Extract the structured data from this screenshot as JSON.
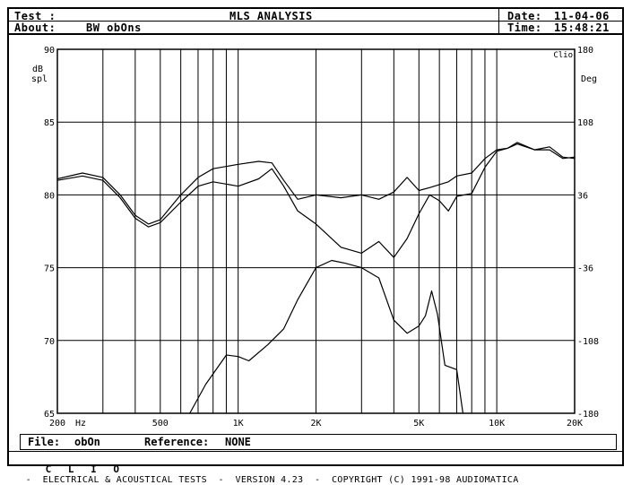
{
  "header": {
    "test_label": "Test :",
    "about_label": "About:",
    "about_value": "BW obOns",
    "title": "MLS ANALYSIS",
    "date_label": "Date:",
    "date_value": "11-04-06",
    "time_label": "Time:",
    "time_value": "15:48:21"
  },
  "footer": {
    "file_label": "File:",
    "file_value": "obOn",
    "reference_label": "Reference:",
    "reference_value": "NONE"
  },
  "copyright": {
    "brand": "C L I O",
    "text": "-  ELECTRICAL & ACOUSTICAL TESTS  -  VERSION 4.23  -  COPYRIGHT (C) 1991-98 AUDIOMATICA"
  },
  "chart_data": {
    "type": "line",
    "xscale": "log",
    "xlim": [
      200,
      20000
    ],
    "ylim": [
      65,
      90
    ],
    "y2lim": [
      -180,
      180
    ],
    "xlabel": "Hz",
    "ylabel": "dB spl",
    "y2label": "Deg",
    "corner_label": "Clio",
    "x_tick_labels": [
      {
        "value": 200,
        "label": "200"
      },
      {
        "value": 500,
        "label": "500"
      },
      {
        "value": 1000,
        "label": "1K"
      },
      {
        "value": 2000,
        "label": "2K"
      },
      {
        "value": 5000,
        "label": "5K"
      },
      {
        "value": 10000,
        "label": "10K"
      },
      {
        "value": 20000,
        "label": "20K"
      }
    ],
    "y_ticks": [
      "90",
      "85",
      "80",
      "75",
      "70",
      "65"
    ],
    "y2_ticks": [
      "180",
      "108",
      "36",
      "-36",
      "-108",
      "-180"
    ],
    "grid": true,
    "series": [
      {
        "values": [
          [
            200,
            81.1
          ],
          [
            250,
            81.5
          ],
          [
            300,
            81.2
          ],
          [
            350,
            80
          ],
          [
            400,
            78.6
          ],
          [
            450,
            78
          ],
          [
            500,
            78.3
          ],
          [
            600,
            80
          ],
          [
            700,
            81.2
          ],
          [
            800,
            81.8
          ],
          [
            1000,
            82.1
          ],
          [
            1200,
            82.3
          ],
          [
            1350,
            82.2
          ],
          [
            1500,
            81
          ],
          [
            1700,
            79.7
          ],
          [
            2000,
            80
          ],
          [
            2500,
            79.8
          ],
          [
            3000,
            80
          ],
          [
            3500,
            79.7
          ],
          [
            4000,
            80.2
          ],
          [
            4500,
            81.2
          ],
          [
            5000,
            80.3
          ],
          [
            5500,
            80.5
          ],
          [
            6500,
            80.9
          ],
          [
            7000,
            81.3
          ],
          [
            8000,
            81.5
          ],
          [
            9000,
            82.5
          ],
          [
            10000,
            83.1
          ],
          [
            11000,
            83.2
          ],
          [
            12000,
            83.5
          ],
          [
            14000,
            83.1
          ],
          [
            16000,
            83.1
          ],
          [
            18000,
            82.5
          ],
          [
            20000,
            82.6
          ]
        ]
      },
      {
        "values": [
          [
            200,
            81
          ],
          [
            250,
            81.3
          ],
          [
            300,
            81
          ],
          [
            350,
            79.8
          ],
          [
            400,
            78.4
          ],
          [
            450,
            77.8
          ],
          [
            500,
            78.1
          ],
          [
            600,
            79.5
          ],
          [
            700,
            80.6
          ],
          [
            800,
            80.9
          ],
          [
            1000,
            80.6
          ],
          [
            1200,
            81.1
          ],
          [
            1350,
            81.8
          ],
          [
            1500,
            80.6
          ],
          [
            1700,
            78.9
          ],
          [
            2000,
            78
          ],
          [
            2500,
            76.4
          ],
          [
            3000,
            76
          ],
          [
            3500,
            76.8
          ],
          [
            4000,
            75.7
          ],
          [
            4500,
            77
          ],
          [
            5000,
            78.7
          ],
          [
            5500,
            80
          ],
          [
            6000,
            79.6
          ],
          [
            6500,
            78.9
          ],
          [
            7000,
            79.9
          ],
          [
            8000,
            80.1
          ],
          [
            9000,
            81.9
          ],
          [
            10000,
            83
          ],
          [
            11000,
            83.2
          ],
          [
            12000,
            83.6
          ],
          [
            14000,
            83.1
          ],
          [
            16000,
            83.3
          ],
          [
            18000,
            82.6
          ],
          [
            20000,
            82.5
          ]
        ]
      },
      {
        "values": [
          [
            650,
            65
          ],
          [
            750,
            67
          ],
          [
            900,
            69
          ],
          [
            1000,
            68.9
          ],
          [
            1100,
            68.6
          ],
          [
            1300,
            69.7
          ],
          [
            1500,
            70.8
          ],
          [
            1700,
            72.8
          ],
          [
            2000,
            75
          ],
          [
            2300,
            75.5
          ],
          [
            2600,
            75.3
          ],
          [
            3000,
            75
          ],
          [
            3500,
            74.3
          ],
          [
            4000,
            71.4
          ],
          [
            4500,
            70.5
          ],
          [
            5000,
            71
          ],
          [
            5300,
            71.7
          ],
          [
            5600,
            73.4
          ],
          [
            5900,
            71.8
          ],
          [
            6300,
            68.3
          ],
          [
            7000,
            68
          ],
          [
            7400,
            65
          ]
        ]
      }
    ]
  }
}
